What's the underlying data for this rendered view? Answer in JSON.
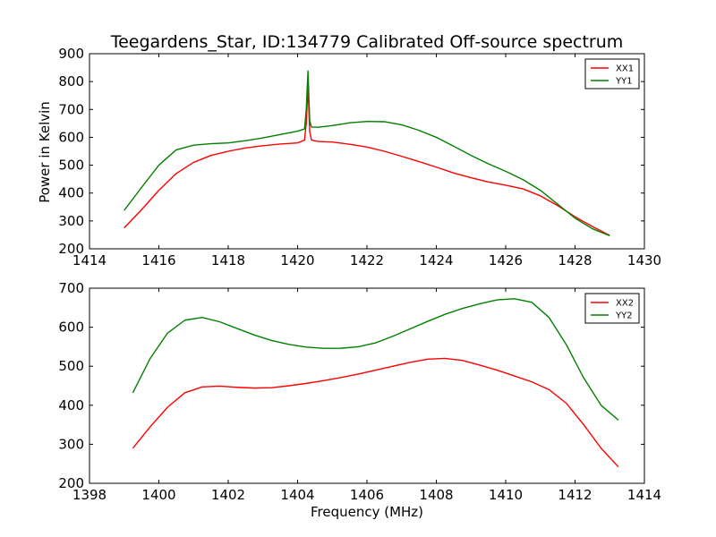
{
  "chart_data": [
    {
      "type": "line",
      "title": "Teegardens_Star, ID:134779 Calibrated Off-source spectrum",
      "xlabel": "",
      "ylabel": "Power in Kelvin",
      "xlim": [
        1414,
        1430
      ],
      "ylim": [
        200,
        900
      ],
      "xticks": [
        "1414",
        "1416",
        "1418",
        "1420",
        "1422",
        "1424",
        "1426",
        "1428",
        "1430"
      ],
      "yticks": [
        "200",
        "300",
        "400",
        "500",
        "600",
        "700",
        "800",
        "900"
      ],
      "legend_position": "top-right",
      "series": [
        {
          "name": "XX1",
          "color": "#ff0000",
          "x": [
            1415.0,
            1415.5,
            1416.0,
            1416.5,
            1417.0,
            1417.5,
            1418.0,
            1418.5,
            1419.0,
            1419.5,
            1420.0,
            1420.2,
            1420.25,
            1420.3,
            1420.35,
            1420.4,
            1420.6,
            1421.0,
            1421.5,
            1422.0,
            1422.5,
            1423.0,
            1423.5,
            1424.0,
            1424.5,
            1425.0,
            1425.5,
            1426.0,
            1426.5,
            1427.0,
            1427.5,
            1428.0,
            1428.5,
            1429.0
          ],
          "y": [
            275,
            340,
            410,
            470,
            510,
            535,
            550,
            562,
            570,
            576,
            580,
            590,
            650,
            780,
            620,
            590,
            585,
            583,
            575,
            565,
            550,
            532,
            513,
            493,
            472,
            455,
            440,
            428,
            415,
            390,
            355,
            315,
            280,
            248
          ]
        },
        {
          "name": "YY1",
          "color": "#008000",
          "x": [
            1415.0,
            1415.5,
            1416.0,
            1416.5,
            1417.0,
            1417.5,
            1418.0,
            1418.5,
            1419.0,
            1419.5,
            1420.0,
            1420.2,
            1420.25,
            1420.3,
            1420.35,
            1420.4,
            1420.6,
            1421.0,
            1421.5,
            1422.0,
            1422.5,
            1423.0,
            1423.5,
            1424.0,
            1424.5,
            1425.0,
            1425.5,
            1426.0,
            1426.5,
            1427.0,
            1427.5,
            1428.0,
            1428.5,
            1429.0
          ],
          "y": [
            338,
            420,
            500,
            555,
            572,
            577,
            580,
            588,
            598,
            610,
            622,
            630,
            700,
            838,
            660,
            637,
            636,
            642,
            652,
            657,
            656,
            645,
            625,
            600,
            568,
            535,
            505,
            478,
            448,
            410,
            360,
            310,
            272,
            247
          ]
        }
      ]
    },
    {
      "type": "line",
      "title": "",
      "xlabel": "Frequency (MHz)",
      "ylabel": "",
      "xlim": [
        1398,
        1414
      ],
      "ylim": [
        200,
        700
      ],
      "xticks": [
        "1398",
        "1400",
        "1402",
        "1404",
        "1406",
        "1408",
        "1410",
        "1412",
        "1414"
      ],
      "yticks": [
        "200",
        "300",
        "400",
        "500",
        "600",
        "700"
      ],
      "legend_position": "top-right",
      "series": [
        {
          "name": "XX2",
          "color": "#ff0000",
          "x": [
            1399.25,
            1399.75,
            1400.25,
            1400.75,
            1401.25,
            1401.75,
            1402.25,
            1402.75,
            1403.25,
            1403.75,
            1404.25,
            1404.75,
            1405.25,
            1405.75,
            1406.25,
            1406.75,
            1407.25,
            1407.75,
            1408.25,
            1408.75,
            1409.25,
            1409.75,
            1410.25,
            1410.75,
            1411.25,
            1411.75,
            1412.25,
            1412.75,
            1413.25
          ],
          "y": [
            290,
            345,
            395,
            432,
            447,
            449,
            446,
            444,
            445,
            450,
            456,
            463,
            471,
            480,
            490,
            500,
            510,
            518,
            520,
            515,
            503,
            490,
            475,
            460,
            440,
            405,
            350,
            290,
            242
          ]
        },
        {
          "name": "YY2",
          "color": "#008000",
          "x": [
            1399.25,
            1399.75,
            1400.25,
            1400.75,
            1401.25,
            1401.75,
            1402.25,
            1402.75,
            1403.25,
            1403.75,
            1404.25,
            1404.75,
            1405.25,
            1405.75,
            1406.25,
            1406.75,
            1407.25,
            1407.75,
            1408.25,
            1408.75,
            1409.25,
            1409.75,
            1410.25,
            1410.75,
            1411.25,
            1411.75,
            1412.25,
            1412.75,
            1413.25
          ],
          "y": [
            432,
            520,
            585,
            618,
            625,
            614,
            597,
            580,
            566,
            556,
            549,
            546,
            546,
            550,
            560,
            577,
            596,
            615,
            633,
            648,
            660,
            670,
            673,
            664,
            625,
            555,
            470,
            400,
            362
          ]
        }
      ]
    }
  ]
}
